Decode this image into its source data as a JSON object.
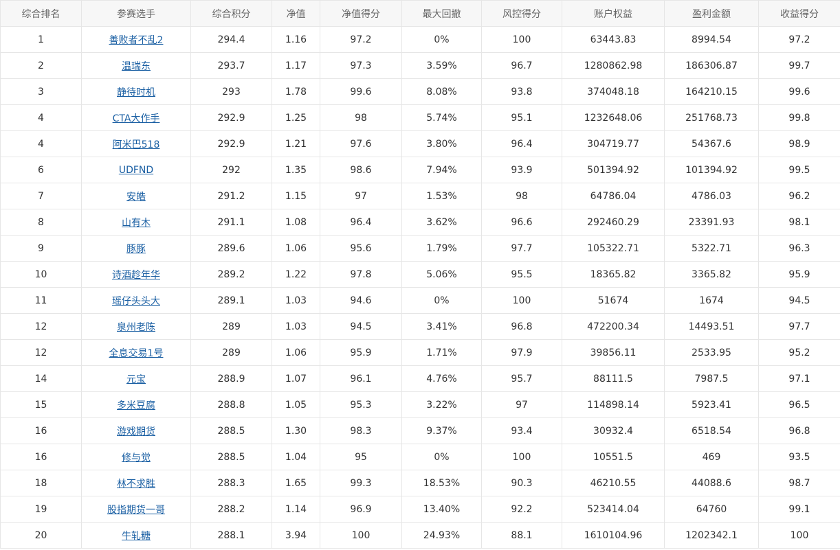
{
  "table": {
    "columns": [
      "综合排名",
      "参赛选手",
      "综合积分",
      "净值",
      "净值得分",
      "最大回撤",
      "风控得分",
      "账户权益",
      "盈利金额",
      "收益得分"
    ],
    "rows": [
      [
        "1",
        "善败者不乱2",
        "294.4",
        "1.16",
        "97.2",
        "0%",
        "100",
        "63443.83",
        "8994.54",
        "97.2"
      ],
      [
        "2",
        "温瑞东",
        "293.7",
        "1.17",
        "97.3",
        "3.59%",
        "96.7",
        "1280862.98",
        "186306.87",
        "99.7"
      ],
      [
        "3",
        "静待时机",
        "293",
        "1.78",
        "99.6",
        "8.08%",
        "93.8",
        "374048.18",
        "164210.15",
        "99.6"
      ],
      [
        "4",
        "CTA大作手",
        "292.9",
        "1.25",
        "98",
        "5.74%",
        "95.1",
        "1232648.06",
        "251768.73",
        "99.8"
      ],
      [
        "4",
        "阿米巴518",
        "292.9",
        "1.21",
        "97.6",
        "3.80%",
        "96.4",
        "304719.77",
        "54367.6",
        "98.9"
      ],
      [
        "6",
        "UDFND",
        "292",
        "1.35",
        "98.6",
        "7.94%",
        "93.9",
        "501394.92",
        "101394.92",
        "99.5"
      ],
      [
        "7",
        "安皓",
        "291.2",
        "1.15",
        "97",
        "1.53%",
        "98",
        "64786.04",
        "4786.03",
        "96.2"
      ],
      [
        "8",
        "山有木",
        "291.1",
        "1.08",
        "96.4",
        "3.62%",
        "96.6",
        "292460.29",
        "23391.93",
        "98.1"
      ],
      [
        "9",
        "豚豚",
        "289.6",
        "1.06",
        "95.6",
        "1.79%",
        "97.7",
        "105322.71",
        "5322.71",
        "96.3"
      ],
      [
        "10",
        "诗酒趁年华",
        "289.2",
        "1.22",
        "97.8",
        "5.06%",
        "95.5",
        "18365.82",
        "3365.82",
        "95.9"
      ],
      [
        "11",
        "瑶仔头头大",
        "289.1",
        "1.03",
        "94.6",
        "0%",
        "100",
        "51674",
        "1674",
        "94.5"
      ],
      [
        "12",
        "泉州老陈",
        "289",
        "1.03",
        "94.5",
        "3.41%",
        "96.8",
        "472200.34",
        "14493.51",
        "97.7"
      ],
      [
        "12",
        "全息交易1号",
        "289",
        "1.06",
        "95.9",
        "1.71%",
        "97.9",
        "39856.11",
        "2533.95",
        "95.2"
      ],
      [
        "14",
        "元宝",
        "288.9",
        "1.07",
        "96.1",
        "4.76%",
        "95.7",
        "88111.5",
        "7987.5",
        "97.1"
      ],
      [
        "15",
        "多米豆腐",
        "288.8",
        "1.05",
        "95.3",
        "3.22%",
        "97",
        "114898.14",
        "5923.41",
        "96.5"
      ],
      [
        "16",
        "游戏期货",
        "288.5",
        "1.30",
        "98.3",
        "9.37%",
        "93.4",
        "30932.4",
        "6518.54",
        "96.8"
      ],
      [
        "16",
        "修与觉",
        "288.5",
        "1.04",
        "95",
        "0%",
        "100",
        "10551.5",
        "469",
        "93.5"
      ],
      [
        "18",
        "林不求胜",
        "288.3",
        "1.65",
        "99.3",
        "18.53%",
        "90.3",
        "46210.55",
        "44088.6",
        "98.7"
      ],
      [
        "19",
        "股指期货一哥",
        "288.2",
        "1.14",
        "96.9",
        "13.40%",
        "92.2",
        "523414.04",
        "64760",
        "99.1"
      ],
      [
        "20",
        "牛轧糖",
        "288.1",
        "3.94",
        "100",
        "24.93%",
        "88.1",
        "1610104.96",
        "1202342.1",
        "100"
      ]
    ]
  },
  "colors": {
    "header_bg": "#f7f7f7",
    "border": "#e6e6e6",
    "link": "#1a5fa3",
    "text": "#333333",
    "header_text": "#666666"
  }
}
